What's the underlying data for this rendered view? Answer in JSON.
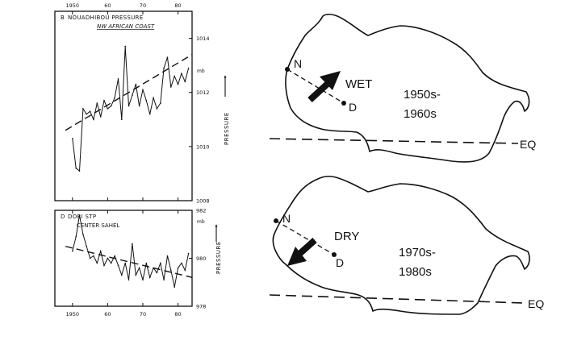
{
  "chart_data": [
    {
      "type": "line",
      "panel_label": "B",
      "title": "NOUADHIBOU PRESSURE",
      "subtitle": "NW AFRICAN COAST",
      "ylabel": "PRESSURE",
      "y_unit": "mb",
      "x_ticks": [
        "1950",
        "60",
        "70",
        "80"
      ],
      "y_ticks": [
        "1014",
        "1012",
        "1010",
        "1008"
      ],
      "xlim": [
        1945,
        1984
      ],
      "ylim": [
        1008,
        1015
      ],
      "grid": false,
      "series": [
        {
          "x": [
            1950,
            1951,
            1952,
            1953,
            1954,
            1955,
            1956,
            1957,
            1958,
            1959,
            1960,
            1961,
            1962,
            1963,
            1964,
            1965,
            1966,
            1967,
            1968,
            1969,
            1970,
            1971,
            1972,
            1973,
            1974,
            1975,
            1976,
            1977,
            1978,
            1979,
            1980,
            1981,
            1982,
            1983
          ],
          "values": [
            1010.3,
            1009.2,
            1009.1,
            1011.4,
            1011.2,
            1011.3,
            1011.0,
            1011.6,
            1011.1,
            1011.7,
            1011.4,
            1011.5,
            1011.8,
            1012.5,
            1011.0,
            1013.7,
            1011.5,
            1011.9,
            1012.3,
            1011.5,
            1012.1,
            1011.7,
            1011.2,
            1011.8,
            1011.4,
            1011.6,
            1012.9,
            1013.3,
            1012.2,
            1012.6,
            1012.3,
            1012.7,
            1012.4,
            1012.9
          ]
        },
        {
          "style": "dashed trend",
          "x": [
            1948,
            1984
          ],
          "values": [
            1010.6,
            1013.4
          ]
        }
      ]
    },
    {
      "type": "line",
      "panel_label": "D",
      "title": "DORI STP",
      "subtitle": "CENTER SAHEL",
      "ylabel": "PRESSURE",
      "y_unit": "mb",
      "x_ticks": [
        "1950",
        "60",
        "70",
        "80"
      ],
      "y_ticks": [
        "982",
        "980",
        "978"
      ],
      "xlim": [
        1945,
        1984
      ],
      "ylim": [
        978,
        982
      ],
      "grid": false,
      "series": [
        {
          "x": [
            1950,
            1951,
            1952,
            1953,
            1954,
            1955,
            1956,
            1957,
            1958,
            1959,
            1960,
            1961,
            1962,
            1963,
            1964,
            1965,
            1966,
            1967,
            1968,
            1969,
            1970,
            1971,
            1972,
            1973,
            1974,
            1975,
            1976,
            1977,
            1978,
            1979,
            1980,
            1981,
            1982,
            1983
          ],
          "values": [
            980.3,
            980.9,
            981.8,
            981.0,
            980.5,
            980.0,
            980.1,
            979.8,
            980.3,
            979.7,
            980.0,
            979.8,
            980.1,
            979.7,
            979.3,
            979.8,
            979.1,
            980.6,
            979.3,
            979.6,
            979.1,
            979.8,
            979.2,
            979.6,
            979.4,
            979.8,
            979.1,
            980.1,
            979.5,
            978.8,
            979.6,
            979.8,
            979.5,
            980.2
          ]
        },
        {
          "style": "dashed trend",
          "x": [
            1948,
            1984
          ],
          "values": [
            980.5,
            979.2
          ]
        }
      ]
    }
  ],
  "maps": [
    {
      "point_labels": [
        "N",
        "D"
      ],
      "regime": "WET",
      "period_line1": "1950s-",
      "period_line2": "1960s",
      "equator_label": "EQ"
    },
    {
      "point_labels": [
        "N",
        "D"
      ],
      "regime": "DRY",
      "period_line1": "1970s-",
      "period_line2": "1980s",
      "equator_label": "EQ"
    }
  ]
}
